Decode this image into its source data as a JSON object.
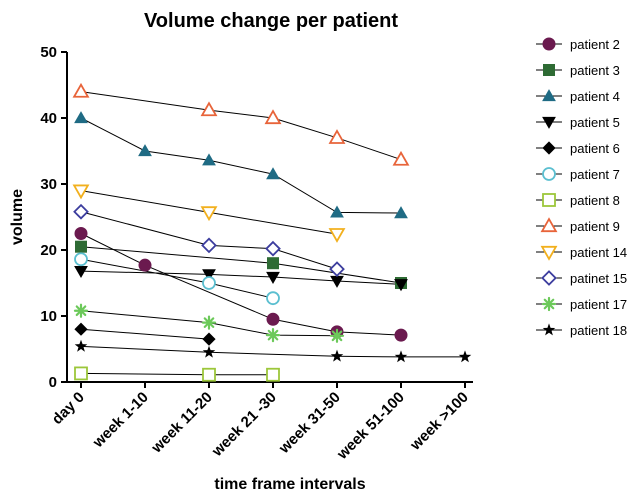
{
  "chart_data": {
    "type": "line",
    "title": "Volume change per patient",
    "xlabel": "time frame intervals",
    "ylabel": "volume",
    "categories": [
      "day 0",
      "week 1-10",
      "week 11-20",
      "week 21 -30",
      "week 31-50",
      "week 51-100",
      "week >100"
    ],
    "ylim": [
      0,
      50
    ],
    "yticks": [
      0,
      10,
      20,
      30,
      40,
      50
    ],
    "grid": false,
    "legend": "right",
    "series": [
      {
        "name": "patient 2",
        "marker": "circle-filled",
        "color": "#6b1a4f",
        "values": [
          22.5,
          17.7,
          null,
          9.5,
          7.6,
          7.1,
          null
        ]
      },
      {
        "name": "patient 3",
        "marker": "square-filled",
        "color": "#2e6b34",
        "values": [
          20.5,
          null,
          null,
          18.0,
          null,
          15.0,
          null
        ]
      },
      {
        "name": "patient 4",
        "marker": "triangle-filled",
        "color": "#1f6b84",
        "values": [
          40.0,
          35.0,
          33.6,
          31.5,
          25.7,
          25.6,
          null
        ]
      },
      {
        "name": "patient 5",
        "marker": "triangle-down-filled",
        "color": "#000000",
        "values": [
          16.8,
          null,
          16.3,
          15.9,
          15.3,
          14.8,
          null
        ]
      },
      {
        "name": "patient 6",
        "marker": "diamond-filled",
        "color": "#000000",
        "values": [
          8.0,
          null,
          6.5,
          null,
          null,
          null,
          null
        ]
      },
      {
        "name": "patient 7",
        "marker": "circle-open",
        "color": "#5bbfd0",
        "values": [
          18.6,
          null,
          15.0,
          12.7,
          null,
          null,
          null
        ]
      },
      {
        "name": "patient 8",
        "marker": "square-open",
        "color": "#9cc73a",
        "values": [
          1.3,
          null,
          1.1,
          1.1,
          null,
          null,
          null
        ]
      },
      {
        "name": "patient 9",
        "marker": "triangle-open",
        "color": "#e8643a",
        "values": [
          44.0,
          null,
          41.2,
          40.0,
          37.0,
          33.7,
          null
        ]
      },
      {
        "name": "patient 14",
        "marker": "triangle-down-open",
        "color": "#f2b01e",
        "values": [
          29.0,
          null,
          25.7,
          null,
          22.4,
          null,
          null
        ]
      },
      {
        "name": "patinet 15",
        "marker": "diamond-open",
        "color": "#3c3d9e",
        "values": [
          25.8,
          null,
          20.7,
          20.2,
          17.1,
          null,
          null
        ]
      },
      {
        "name": "patient 17",
        "marker": "asterisk",
        "color": "#6cc95a",
        "values": [
          10.8,
          null,
          9.0,
          7.1,
          7.0,
          null,
          null
        ]
      },
      {
        "name": "patient 18",
        "marker": "star",
        "color": "#000000",
        "values": [
          5.4,
          null,
          4.5,
          null,
          3.9,
          3.8,
          3.8
        ]
      }
    ]
  }
}
